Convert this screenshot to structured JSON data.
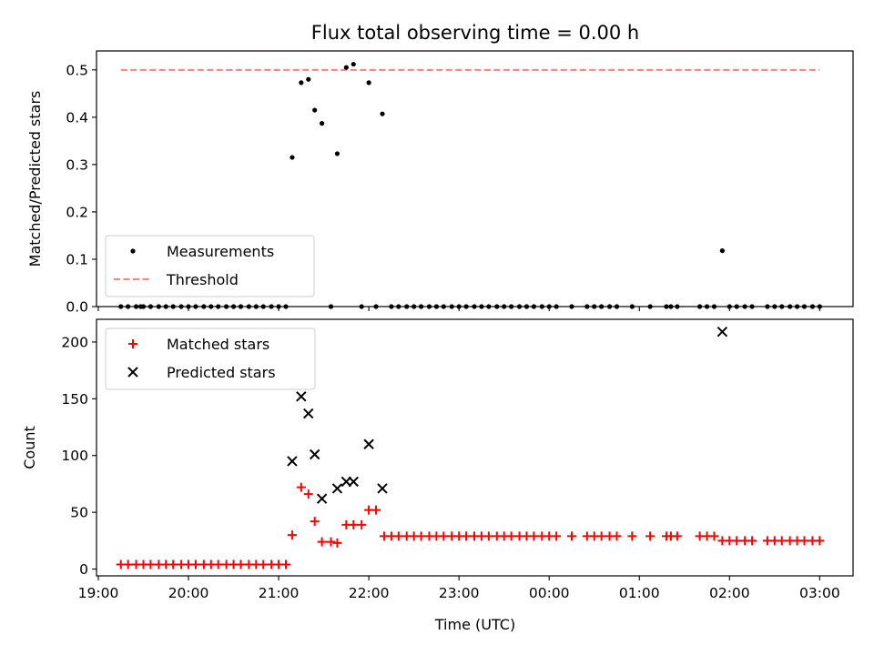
{
  "chart_data": [
    {
      "type": "scatter",
      "title": "Flux total observing time = 0.00 h",
      "ylabel": "Matched/Predicted stars",
      "ylim": [
        0,
        0.54
      ],
      "yticks": [
        0.0,
        0.1,
        0.2,
        0.3,
        0.4,
        0.5
      ],
      "yticklabels": [
        "0.0",
        "0.1",
        "0.2",
        "0.3",
        "0.4",
        "0.5"
      ],
      "xlim": [
        18.98,
        27.37
      ],
      "xticks": [
        19,
        20,
        21,
        22,
        23,
        24,
        25,
        26,
        27
      ],
      "legend_position": "lower-left",
      "legend": [
        "Measurements",
        "Threshold"
      ],
      "threshold": {
        "name": "Threshold",
        "y": 0.5,
        "x_range": [
          19.25,
          27.0
        ],
        "color": "#ff7f7f"
      },
      "series": [
        {
          "name": "Measurements",
          "color": "#000000",
          "marker": "dot",
          "x": [
            19.25,
            19.33,
            19.42,
            19.47,
            19.5,
            19.58,
            19.67,
            19.75,
            19.83,
            19.92,
            20.0,
            20.08,
            20.17,
            20.25,
            20.33,
            20.42,
            20.5,
            20.58,
            20.67,
            20.75,
            20.83,
            20.92,
            21.0,
            21.08,
            21.15,
            21.25,
            21.33,
            21.4,
            21.48,
            21.58,
            21.65,
            21.75,
            21.83,
            21.92,
            22.0,
            22.08,
            22.15,
            22.25,
            22.33,
            22.42,
            22.5,
            22.58,
            22.67,
            22.75,
            22.83,
            22.92,
            23.0,
            23.08,
            23.17,
            23.25,
            23.33,
            23.42,
            23.5,
            23.58,
            23.67,
            23.75,
            23.83,
            23.92,
            24.0,
            24.08,
            24.25,
            24.42,
            24.5,
            24.58,
            24.67,
            24.75,
            24.92,
            25.12,
            25.3,
            25.35,
            25.42,
            25.67,
            25.75,
            25.83,
            25.92,
            26.0,
            26.08,
            26.17,
            26.25,
            26.42,
            26.5,
            26.58,
            26.67,
            26.75,
            26.83,
            26.92,
            27.0
          ],
          "y": [
            0,
            0,
            0,
            0,
            0,
            0,
            0,
            0,
            0,
            0,
            0,
            0,
            0,
            0,
            0,
            0,
            0,
            0,
            0,
            0,
            0,
            0,
            0,
            0,
            0.315,
            0.473,
            0.48,
            0.415,
            0.387,
            0,
            0.323,
            0.505,
            0.512,
            0,
            0.473,
            0,
            0.407,
            0,
            0,
            0,
            0,
            0,
            0,
            0,
            0,
            0,
            0,
            0,
            0,
            0,
            0,
            0,
            0,
            0,
            0,
            0,
            0,
            0,
            0,
            0,
            0,
            0,
            0,
            0,
            0,
            0,
            0,
            0,
            0,
            0,
            0,
            0,
            0,
            0,
            0.118,
            0,
            0,
            0,
            0,
            0,
            0,
            0,
            0,
            0,
            0,
            0,
            0
          ]
        }
      ]
    },
    {
      "type": "scatter",
      "title": "",
      "xlabel": "Time (UTC)",
      "ylabel": "Count",
      "ylim": [
        -6,
        220
      ],
      "yticks": [
        0,
        50,
        100,
        150,
        200
      ],
      "yticklabels": [
        "0",
        "50",
        "100",
        "150",
        "200"
      ],
      "xlim": [
        18.98,
        27.37
      ],
      "xticks": [
        19,
        20,
        21,
        22,
        23,
        24,
        25,
        26,
        27
      ],
      "xticklabels": [
        "19:00",
        "20:00",
        "21:00",
        "22:00",
        "23:00",
        "00:00",
        "01:00",
        "02:00",
        "03:00"
      ],
      "legend_position": "upper-left",
      "legend": [
        "Matched stars",
        "Predicted stars"
      ],
      "series": [
        {
          "name": "Matched stars",
          "color": "#ff0000",
          "marker": "plus",
          "x": [
            19.25,
            19.33,
            19.42,
            19.5,
            19.58,
            19.67,
            19.75,
            19.83,
            19.92,
            20.0,
            20.08,
            20.17,
            20.25,
            20.33,
            20.42,
            20.5,
            20.58,
            20.67,
            20.75,
            20.83,
            20.92,
            21.0,
            21.08,
            21.15,
            21.25,
            21.33,
            21.4,
            21.48,
            21.58,
            21.65,
            21.75,
            21.83,
            21.92,
            22.0,
            22.08,
            22.17,
            22.25,
            22.33,
            22.42,
            22.5,
            22.58,
            22.67,
            22.75,
            22.83,
            22.92,
            23.0,
            23.08,
            23.17,
            23.25,
            23.33,
            23.42,
            23.5,
            23.58,
            23.67,
            23.75,
            23.83,
            23.92,
            24.0,
            24.08,
            24.25,
            24.42,
            24.5,
            24.58,
            24.67,
            24.75,
            24.92,
            25.12,
            25.3,
            25.35,
            25.42,
            25.67,
            25.75,
            25.83,
            25.92,
            26.0,
            26.08,
            26.17,
            26.25,
            26.42,
            26.5,
            26.58,
            26.67,
            26.75,
            26.83,
            26.92,
            27.0
          ],
          "y": [
            4,
            4,
            4,
            4,
            4,
            4,
            4,
            4,
            4,
            4,
            4,
            4,
            4,
            4,
            4,
            4,
            4,
            4,
            4,
            4,
            4,
            4,
            4,
            30,
            72,
            66,
            42,
            24,
            24,
            23,
            39,
            39,
            39,
            52,
            52,
            29,
            29,
            29,
            29,
            29,
            29,
            29,
            29,
            29,
            29,
            29,
            29,
            29,
            29,
            29,
            29,
            29,
            29,
            29,
            29,
            29,
            29,
            29,
            29,
            29,
            29,
            29,
            29,
            29,
            29,
            29,
            29,
            29,
            29,
            29,
            29,
            29,
            29,
            25,
            25,
            25,
            25,
            25,
            25,
            25,
            25,
            25,
            25,
            25,
            25,
            25
          ]
        },
        {
          "name": "Predicted stars",
          "color": "#000000",
          "marker": "x",
          "x": [
            21.15,
            21.25,
            21.33,
            21.4,
            21.48,
            21.65,
            21.75,
            21.83,
            22.0,
            22.15,
            25.92
          ],
          "y": [
            95,
            152,
            137,
            101,
            62,
            71,
            77,
            77,
            110,
            71,
            209
          ]
        }
      ]
    }
  ]
}
